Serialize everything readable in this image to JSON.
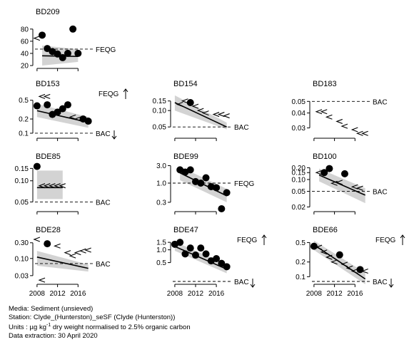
{
  "chart_data": [
    {
      "type": "scatter",
      "title": "BD209",
      "ylim": [
        20,
        95
      ],
      "yticks": [
        20,
        40,
        60,
        80
      ],
      "ytick_labels": [
        "20",
        "40",
        "60",
        "80"
      ],
      "log": false,
      "points": [
        [
          2009,
          70
        ],
        [
          2010,
          48
        ],
        [
          2011,
          43
        ],
        [
          2012,
          39
        ],
        [
          2013,
          33
        ],
        [
          2014,
          40
        ],
        [
          2015,
          80
        ],
        [
          2016,
          40
        ]
      ],
      "censored": [
        [
          2008,
          65
        ]
      ],
      "trend": [
        [
          2009,
          36
        ],
        [
          2016,
          35
        ]
      ],
      "band_lo": [
        [
          2009,
          20
        ],
        [
          2016,
          26
        ]
      ],
      "band_hi": [
        [
          2009,
          53
        ],
        [
          2016,
          47
        ]
      ],
      "band_from": 2009,
      "ref": {
        "label": "FEQG",
        "value": 47,
        "arrow": ""
      }
    },
    {
      "type": "scatter",
      "title": "BD153",
      "ylim": [
        0.09,
        0.75
      ],
      "yticks": [
        0.1,
        0.2,
        0.5
      ],
      "ytick_labels": [
        "0.1",
        "0.2",
        "0.5"
      ],
      "log": true,
      "points": [
        [
          2008,
          0.38
        ],
        [
          2010,
          0.4
        ],
        [
          2011,
          0.25
        ],
        [
          2012,
          0.28
        ],
        [
          2013,
          0.33
        ],
        [
          2014,
          0.4
        ],
        [
          2017,
          0.2
        ],
        [
          2018,
          0.18
        ]
      ],
      "censored": [
        [
          2009,
          0.6
        ],
        [
          2010,
          0.6
        ],
        [
          2015,
          0.22
        ],
        [
          2016,
          0.2
        ],
        [
          2017,
          0.2
        ]
      ],
      "trend": [
        [
          2008,
          0.3
        ],
        [
          2018,
          0.17
        ]
      ],
      "band_lo": [
        [
          2008,
          0.22
        ],
        [
          2018,
          0.13
        ]
      ],
      "band_hi": [
        [
          2008,
          0.42
        ],
        [
          2018,
          0.22
        ]
      ],
      "ref": {
        "label": "BAC",
        "value": 0.1,
        "arrow": "down"
      },
      "topnote": {
        "label": "FEQG",
        "arrow": "up"
      }
    },
    {
      "type": "scatter",
      "title": "BD154",
      "ylim": [
        0.035,
        0.22
      ],
      "yticks": [
        0.05,
        0.1,
        0.15
      ],
      "ytick_labels": [
        "0.05",
        "0.10",
        "0.15"
      ],
      "log": true,
      "points": [
        [
          2011,
          0.14
        ]
      ],
      "censored": [
        [
          2009,
          0.13
        ],
        [
          2010,
          0.15
        ],
        [
          2012,
          0.12
        ],
        [
          2013,
          0.1
        ],
        [
          2014,
          0.09
        ],
        [
          2016,
          0.085
        ],
        [
          2017,
          0.085
        ],
        [
          2018,
          0.08
        ]
      ],
      "trend": [
        [
          2008,
          0.14
        ],
        [
          2018,
          0.05
        ]
      ],
      "band_lo": [
        [
          2008,
          0.1
        ],
        [
          2018,
          0.045
        ]
      ],
      "band_hi": [
        [
          2008,
          0.19
        ],
        [
          2018,
          0.06
        ]
      ],
      "ref": {
        "label": "BAC",
        "value": 0.05,
        "arrow": ""
      }
    },
    {
      "type": "scatter",
      "title": "BD183",
      "ylim": [
        0.026,
        0.06
      ],
      "yticks": [
        0.03,
        0.04,
        0.05
      ],
      "ytick_labels": [
        "0.03",
        "0.04",
        "0.05"
      ],
      "log": true,
      "points": [],
      "censored": [
        [
          2009,
          0.041
        ],
        [
          2010,
          0.041
        ],
        [
          2011,
          0.037
        ],
        [
          2013,
          0.034
        ],
        [
          2014,
          0.031
        ],
        [
          2016,
          0.029
        ],
        [
          2017,
          0.027
        ],
        [
          2018,
          0.027
        ]
      ],
      "ref": {
        "label": "BAC",
        "value": 0.05,
        "arrow": ""
      }
    },
    {
      "type": "scatter",
      "title": "BDE85",
      "ylim": [
        0.04,
        0.17
      ],
      "yticks": [
        0.05,
        0.1,
        0.15
      ],
      "ytick_labels": [
        "0.05",
        "0.10",
        "0.15"
      ],
      "log": true,
      "points": [
        [
          2008,
          0.16
        ]
      ],
      "censored": [
        [
          2009,
          0.085
        ],
        [
          2010,
          0.085
        ],
        [
          2011,
          0.085
        ],
        [
          2012,
          0.085
        ],
        [
          2013,
          0.085
        ]
      ],
      "trend": [
        [
          2008,
          0.08
        ],
        [
          2013,
          0.08
        ]
      ],
      "band_lo": [
        [
          2008,
          0.055
        ],
        [
          2013,
          0.055
        ]
      ],
      "band_hi": [
        [
          2008,
          0.14
        ],
        [
          2013,
          0.14
        ]
      ],
      "ref": {
        "label": "BAC",
        "value": 0.05,
        "arrow": ""
      }
    },
    {
      "type": "scatter",
      "title": "BDE99",
      "ylim": [
        0.2,
        3.2
      ],
      "yticks": [
        0.3,
        1.0,
        3.0
      ],
      "ytick_labels": [
        "0.3",
        "1.0",
        "3.0"
      ],
      "log": true,
      "points": [
        [
          2009,
          2.3
        ],
        [
          2010,
          2.0
        ],
        [
          2011,
          2.3
        ],
        [
          2012,
          1.1
        ],
        [
          2013,
          1.0
        ],
        [
          2014,
          1.4
        ],
        [
          2015,
          0.8
        ],
        [
          2016,
          0.75
        ],
        [
          2017,
          0.2
        ],
        [
          2018,
          0.55
        ]
      ],
      "censored": [],
      "trend": [
        [
          2009,
          1.9
        ],
        [
          2018,
          0.45
        ]
      ],
      "band_lo": [
        [
          2009,
          1.2
        ],
        [
          2018,
          0.3
        ]
      ],
      "band_hi": [
        [
          2009,
          2.8
        ],
        [
          2018,
          0.7
        ]
      ],
      "band_from": 2009,
      "ref": {
        "label": "FEQG",
        "value": 1.0,
        "arrow": ""
      }
    },
    {
      "type": "scatter",
      "title": "BD100",
      "ylim": [
        0.018,
        0.24
      ],
      "yticks": [
        0.02,
        0.05,
        0.1,
        0.15,
        0.2
      ],
      "ytick_labels": [
        "0.02",
        "0.05",
        "0.10",
        "0.15",
        "0.20"
      ],
      "log": true,
      "points": [
        [
          2010,
          0.15
        ],
        [
          2011,
          0.19
        ],
        [
          2014,
          0.14
        ]
      ],
      "censored": [
        [
          2009,
          0.15
        ],
        [
          2012,
          0.08
        ],
        [
          2013,
          0.085
        ],
        [
          2016,
          0.065
        ],
        [
          2017,
          0.06
        ]
      ],
      "trend": [
        [
          2009,
          0.13
        ],
        [
          2018,
          0.04
        ]
      ],
      "band_lo": [
        [
          2009,
          0.09
        ],
        [
          2018,
          0.025
        ]
      ],
      "band_hi": [
        [
          2009,
          0.19
        ],
        [
          2018,
          0.06
        ]
      ],
      "band_from": 2009,
      "ref": {
        "label": "BAC",
        "value": 0.05,
        "arrow": ""
      }
    },
    {
      "type": "scatter",
      "title": "BDE28",
      "ylim": [
        0.02,
        0.42
      ],
      "yticks": [
        0.03,
        0.1,
        0.3
      ],
      "ytick_labels": [
        "0.03",
        "0.10",
        "0.30"
      ],
      "log": true,
      "points": [
        [
          2010,
          0.28
        ]
      ],
      "censored": [
        [
          2008,
          0.38
        ],
        [
          2012,
          0.24
        ],
        [
          2014,
          0.15
        ],
        [
          2015,
          0.12
        ],
        [
          2016,
          0.15
        ],
        [
          2017,
          0.17
        ],
        [
          2018,
          0.18
        ],
        [
          2009,
          0.022
        ]
      ],
      "trend": [
        [
          2008,
          0.11
        ],
        [
          2018,
          0.05
        ]
      ],
      "band_lo": [
        [
          2008,
          0.06
        ],
        [
          2018,
          0.04
        ]
      ],
      "band_hi": [
        [
          2008,
          0.17
        ],
        [
          2018,
          0.065
        ]
      ],
      "ref": {
        "label": "BAC",
        "value": 0.07,
        "arrow": ""
      }
    },
    {
      "type": "scatter",
      "title": "BDE47",
      "ylim": [
        0.18,
        1.9
      ],
      "yticks": [
        0.5,
        1.0,
        1.5
      ],
      "ytick_labels": [
        "0.5",
        "1.0",
        "1.5"
      ],
      "log": true,
      "points": [
        [
          2008,
          1.35
        ],
        [
          2009,
          1.5
        ],
        [
          2010,
          0.8
        ],
        [
          2011,
          1.1
        ],
        [
          2012,
          0.75
        ],
        [
          2013,
          1.1
        ],
        [
          2014,
          0.8
        ],
        [
          2015,
          0.55
        ],
        [
          2016,
          0.62
        ],
        [
          2017,
          0.48
        ],
        [
          2018,
          0.4
        ]
      ],
      "censored": [],
      "trend": [
        [
          2008,
          1.2
        ],
        [
          2018,
          0.35
        ]
      ],
      "band_lo": [
        [
          2008,
          0.95
        ],
        [
          2018,
          0.28
        ]
      ],
      "band_hi": [
        [
          2008,
          1.55
        ],
        [
          2018,
          0.45
        ]
      ],
      "ref": {
        "label": "BAC",
        "value": 0.18,
        "arrow": "down"
      },
      "topnote": {
        "label": "FEQG",
        "arrow": "up"
      }
    },
    {
      "type": "scatter",
      "title": "BDE66",
      "ylim": [
        0.08,
        0.62
      ],
      "yticks": [
        0.1,
        0.2,
        0.5
      ],
      "ytick_labels": [
        "0.1",
        "0.2",
        "0.5"
      ],
      "log": true,
      "points": [
        [
          2008,
          0.42
        ],
        [
          2013,
          0.28
        ],
        [
          2017,
          0.14
        ]
      ],
      "censored": [
        [
          2009,
          0.4
        ],
        [
          2010,
          0.32
        ],
        [
          2011,
          0.25
        ],
        [
          2012,
          0.2
        ],
        [
          2014,
          0.18
        ],
        [
          2015,
          0.15
        ],
        [
          2016,
          0.13
        ],
        [
          2018,
          0.13
        ]
      ],
      "trend": [
        [
          2008,
          0.45
        ],
        [
          2018,
          0.09
        ]
      ],
      "band_lo": [
        [
          2008,
          0.35
        ],
        [
          2018,
          0.07
        ]
      ],
      "band_hi": [
        [
          2008,
          0.55
        ],
        [
          2018,
          0.12
        ]
      ],
      "ref": {
        "label": "BAC",
        "value": 0.08,
        "arrow": "down"
      },
      "topnote": {
        "label": "FEQG",
        "arrow": "up"
      }
    }
  ],
  "x_axis": {
    "ticks": [
      2008,
      2012,
      2016
    ],
    "labels": [
      "2008",
      "2012",
      "2016"
    ],
    "xlim": [
      2007.6,
      2018.6
    ]
  },
  "caption": {
    "media": "Media: Sediment (unsieved)",
    "station": "Station: Clyde_(Hunterston)_seSF (Clyde (Hunterston))",
    "units_pre": "Units : µg kg",
    "units_sup": "-1",
    "units_post": " dry weight normalised to 2.5% organic carbon",
    "extraction": "Data extraction: 30 April 2020"
  }
}
